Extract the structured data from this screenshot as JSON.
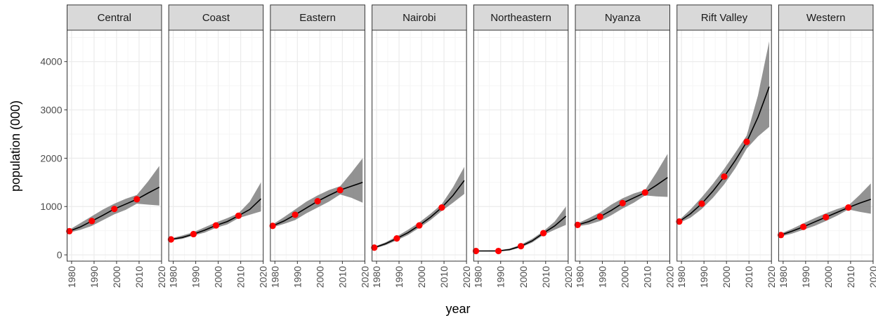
{
  "chart_data": {
    "type": "line",
    "facet_by": "province",
    "xlabel": "year",
    "ylabel": "population (000)",
    "xlim": [
      1978,
      2020
    ],
    "ylim": [
      -130,
      4650
    ],
    "x_ticks": [
      1980,
      1990,
      2000,
      2010,
      2020
    ],
    "y_ticks": [
      0,
      1000,
      2000,
      3000,
      4000
    ],
    "grid": true,
    "legend": "none",
    "colors": {
      "line": "#000000",
      "ribbon": "#7f7f7f",
      "points": "#ff0000",
      "strip_fill": "#d9d9d9",
      "grid_major": "#ebebeb",
      "grid_minor": "#f5f5f5"
    },
    "panels": [
      {
        "name": "Central",
        "points": [
          {
            "x": 1979,
            "y": 490
          },
          {
            "x": 1989,
            "y": 700
          },
          {
            "x": 1999,
            "y": 950
          },
          {
            "x": 2009,
            "y": 1150
          }
        ],
        "line": [
          [
            1979,
            490
          ],
          [
            1984,
            580
          ],
          [
            1989,
            700
          ],
          [
            1994,
            820
          ],
          [
            1999,
            950
          ],
          [
            2004,
            1050
          ],
          [
            2009,
            1150
          ],
          [
            2014,
            1280
          ],
          [
            2019,
            1400
          ]
        ],
        "ribbon_upper": [
          [
            1979,
            520
          ],
          [
            1984,
            660
          ],
          [
            1989,
            800
          ],
          [
            1994,
            940
          ],
          [
            1999,
            1060
          ],
          [
            2004,
            1160
          ],
          [
            2009,
            1240
          ],
          [
            2014,
            1520
          ],
          [
            2019,
            1840
          ]
        ],
        "ribbon_lower": [
          [
            1979,
            460
          ],
          [
            1984,
            520
          ],
          [
            1989,
            600
          ],
          [
            1994,
            720
          ],
          [
            1999,
            840
          ],
          [
            2004,
            930
          ],
          [
            2009,
            1060
          ],
          [
            2014,
            1040
          ],
          [
            2019,
            1020
          ]
        ]
      },
      {
        "name": "Coast",
        "points": [
          {
            "x": 1979,
            "y": 320
          },
          {
            "x": 1989,
            "y": 430
          },
          {
            "x": 1999,
            "y": 610
          },
          {
            "x": 2009,
            "y": 810
          }
        ],
        "line": [
          [
            1979,
            320
          ],
          [
            1984,
            360
          ],
          [
            1989,
            430
          ],
          [
            1994,
            510
          ],
          [
            1999,
            610
          ],
          [
            2004,
            690
          ],
          [
            2009,
            810
          ],
          [
            2014,
            940
          ],
          [
            2019,
            1160
          ]
        ],
        "ribbon_upper": [
          [
            1979,
            340
          ],
          [
            1984,
            400
          ],
          [
            1989,
            470
          ],
          [
            1994,
            570
          ],
          [
            1999,
            670
          ],
          [
            2004,
            760
          ],
          [
            2009,
            860
          ],
          [
            2014,
            1100
          ],
          [
            2019,
            1500
          ]
        ],
        "ribbon_lower": [
          [
            1979,
            300
          ],
          [
            1984,
            330
          ],
          [
            1989,
            400
          ],
          [
            1994,
            460
          ],
          [
            1999,
            560
          ],
          [
            2004,
            630
          ],
          [
            2009,
            760
          ],
          [
            2014,
            830
          ],
          [
            2019,
            900
          ]
        ]
      },
      {
        "name": "Eastern",
        "points": [
          {
            "x": 1979,
            "y": 600
          },
          {
            "x": 1989,
            "y": 830
          },
          {
            "x": 1999,
            "y": 1110
          },
          {
            "x": 2009,
            "y": 1340
          }
        ],
        "line": [
          [
            1979,
            600
          ],
          [
            1984,
            700
          ],
          [
            1989,
            830
          ],
          [
            1994,
            970
          ],
          [
            1999,
            1110
          ],
          [
            2004,
            1230
          ],
          [
            2009,
            1340
          ],
          [
            2014,
            1420
          ],
          [
            2019,
            1500
          ]
        ],
        "ribbon_upper": [
          [
            1979,
            630
          ],
          [
            1984,
            780
          ],
          [
            1989,
            940
          ],
          [
            1994,
            1100
          ],
          [
            1999,
            1230
          ],
          [
            2004,
            1340
          ],
          [
            2009,
            1420
          ],
          [
            2014,
            1700
          ],
          [
            2019,
            2000
          ]
        ],
        "ribbon_lower": [
          [
            1979,
            570
          ],
          [
            1984,
            640
          ],
          [
            1989,
            720
          ],
          [
            1994,
            860
          ],
          [
            1999,
            980
          ],
          [
            2004,
            1100
          ],
          [
            2009,
            1250
          ],
          [
            2014,
            1180
          ],
          [
            2019,
            1080
          ]
        ]
      },
      {
        "name": "Nairobi",
        "points": [
          {
            "x": 1979,
            "y": 150
          },
          {
            "x": 1989,
            "y": 340
          },
          {
            "x": 1999,
            "y": 610
          },
          {
            "x": 2009,
            "y": 980
          }
        ],
        "line": [
          [
            1979,
            150
          ],
          [
            1984,
            230
          ],
          [
            1989,
            340
          ],
          [
            1994,
            460
          ],
          [
            1999,
            610
          ],
          [
            2004,
            780
          ],
          [
            2009,
            980
          ],
          [
            2014,
            1230
          ],
          [
            2019,
            1540
          ]
        ],
        "ribbon_upper": [
          [
            1979,
            170
          ],
          [
            1984,
            260
          ],
          [
            1989,
            380
          ],
          [
            1994,
            520
          ],
          [
            1999,
            670
          ],
          [
            2004,
            850
          ],
          [
            2009,
            1050
          ],
          [
            2014,
            1400
          ],
          [
            2019,
            1820
          ]
        ],
        "ribbon_lower": [
          [
            1979,
            130
          ],
          [
            1984,
            200
          ],
          [
            1989,
            300
          ],
          [
            1994,
            410
          ],
          [
            1999,
            560
          ],
          [
            2004,
            720
          ],
          [
            2009,
            910
          ],
          [
            2014,
            1080
          ],
          [
            2019,
            1260
          ]
        ]
      },
      {
        "name": "Northeastern",
        "points": [
          {
            "x": 1979,
            "y": 80
          },
          {
            "x": 1989,
            "y": 80
          },
          {
            "x": 1999,
            "y": 180
          },
          {
            "x": 2009,
            "y": 450
          }
        ],
        "line": [
          [
            1979,
            80
          ],
          [
            1984,
            80
          ],
          [
            1989,
            80
          ],
          [
            1994,
            110
          ],
          [
            1999,
            180
          ],
          [
            2004,
            290
          ],
          [
            2009,
            450
          ],
          [
            2014,
            600
          ],
          [
            2019,
            800
          ]
        ],
        "ribbon_upper": [
          [
            1979,
            90
          ],
          [
            1984,
            92
          ],
          [
            1989,
            95
          ],
          [
            1994,
            130
          ],
          [
            1999,
            210
          ],
          [
            2004,
            330
          ],
          [
            2009,
            490
          ],
          [
            2014,
            690
          ],
          [
            2019,
            1000
          ]
        ],
        "ribbon_lower": [
          [
            1979,
            70
          ],
          [
            1984,
            70
          ],
          [
            1989,
            70
          ],
          [
            1994,
            90
          ],
          [
            1999,
            155
          ],
          [
            2004,
            255
          ],
          [
            2009,
            410
          ],
          [
            2014,
            520
          ],
          [
            2019,
            620
          ]
        ]
      },
      {
        "name": "Nyanza",
        "points": [
          {
            "x": 1979,
            "y": 620
          },
          {
            "x": 1989,
            "y": 790
          },
          {
            "x": 1999,
            "y": 1070
          },
          {
            "x": 2009,
            "y": 1290
          }
        ],
        "line": [
          [
            1979,
            620
          ],
          [
            1984,
            690
          ],
          [
            1989,
            790
          ],
          [
            1994,
            920
          ],
          [
            1999,
            1070
          ],
          [
            2004,
            1180
          ],
          [
            2009,
            1290
          ],
          [
            2014,
            1440
          ],
          [
            2019,
            1600
          ]
        ],
        "ribbon_upper": [
          [
            1979,
            650
          ],
          [
            1984,
            760
          ],
          [
            1989,
            880
          ],
          [
            1994,
            1040
          ],
          [
            1999,
            1170
          ],
          [
            2004,
            1270
          ],
          [
            2009,
            1340
          ],
          [
            2014,
            1700
          ],
          [
            2019,
            2090
          ]
        ],
        "ribbon_lower": [
          [
            1979,
            590
          ],
          [
            1984,
            630
          ],
          [
            1989,
            700
          ],
          [
            1994,
            820
          ],
          [
            1999,
            960
          ],
          [
            2004,
            1080
          ],
          [
            2009,
            1230
          ],
          [
            2014,
            1210
          ],
          [
            2019,
            1200
          ]
        ]
      },
      {
        "name": "Rift Valley",
        "points": [
          {
            "x": 1979,
            "y": 690
          },
          {
            "x": 1989,
            "y": 1060
          },
          {
            "x": 1999,
            "y": 1620
          },
          {
            "x": 2009,
            "y": 2340
          }
        ],
        "line": [
          [
            1979,
            690
          ],
          [
            1984,
            850
          ],
          [
            1989,
            1060
          ],
          [
            1994,
            1320
          ],
          [
            1999,
            1620
          ],
          [
            2004,
            1960
          ],
          [
            2009,
            2340
          ],
          [
            2014,
            2850
          ],
          [
            2019,
            3480
          ]
        ],
        "ribbon_upper": [
          [
            1979,
            720
          ],
          [
            1984,
            940
          ],
          [
            1989,
            1190
          ],
          [
            1994,
            1470
          ],
          [
            1999,
            1780
          ],
          [
            2004,
            2120
          ],
          [
            2009,
            2470
          ],
          [
            2014,
            3300
          ],
          [
            2019,
            4420
          ]
        ],
        "ribbon_lower": [
          [
            1979,
            660
          ],
          [
            1984,
            770
          ],
          [
            1989,
            950
          ],
          [
            1994,
            1180
          ],
          [
            1999,
            1460
          ],
          [
            2004,
            1800
          ],
          [
            2009,
            2200
          ],
          [
            2014,
            2450
          ],
          [
            2019,
            2650
          ]
        ]
      },
      {
        "name": "Western",
        "points": [
          {
            "x": 1979,
            "y": 410
          },
          {
            "x": 1989,
            "y": 580
          },
          {
            "x": 1999,
            "y": 780
          },
          {
            "x": 2009,
            "y": 980
          }
        ],
        "line": [
          [
            1979,
            410
          ],
          [
            1984,
            490
          ],
          [
            1989,
            580
          ],
          [
            1994,
            680
          ],
          [
            1999,
            780
          ],
          [
            2004,
            880
          ],
          [
            2009,
            980
          ],
          [
            2014,
            1070
          ],
          [
            2019,
            1150
          ]
        ],
        "ribbon_upper": [
          [
            1979,
            440
          ],
          [
            1984,
            540
          ],
          [
            1989,
            650
          ],
          [
            1994,
            760
          ],
          [
            1999,
            860
          ],
          [
            2004,
            950
          ],
          [
            2009,
            1020
          ],
          [
            2014,
            1240
          ],
          [
            2019,
            1480
          ]
        ],
        "ribbon_lower": [
          [
            1979,
            380
          ],
          [
            1984,
            440
          ],
          [
            1989,
            520
          ],
          [
            1994,
            600
          ],
          [
            1999,
            700
          ],
          [
            2004,
            810
          ],
          [
            2009,
            940
          ],
          [
            2014,
            890
          ],
          [
            2019,
            850
          ]
        ]
      }
    ]
  }
}
